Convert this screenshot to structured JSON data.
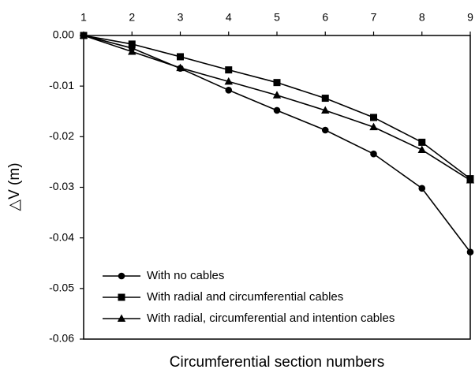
{
  "chart_data": {
    "type": "line",
    "xlabel": "Circumferential section numbers",
    "ylabel": "△V (m)",
    "x": [
      1,
      2,
      3,
      4,
      5,
      6,
      7,
      8,
      9
    ],
    "x_tick_labels": [
      "1",
      "2",
      "3",
      "4",
      "5",
      "6",
      "7",
      "8",
      "9"
    ],
    "xlim": [
      1,
      9
    ],
    "x_axis_position": "top",
    "ylim": [
      -0.06,
      0.0
    ],
    "y_ticks": [
      0.0,
      -0.01,
      -0.02,
      -0.03,
      -0.04,
      -0.05,
      -0.06
    ],
    "y_tick_labels": [
      "0.00",
      "-0.01",
      "-0.02",
      "-0.03",
      "-0.04",
      "-0.05",
      "-0.06"
    ],
    "grid": false,
    "legend_position": "bottom-left",
    "series": [
      {
        "name": "With no cables",
        "marker": "circle",
        "color": "#000000",
        "values": [
          0.0,
          -0.0025,
          -0.0065,
          -0.0108,
          -0.0148,
          -0.0187,
          -0.0234,
          -0.0302,
          -0.0428
        ]
      },
      {
        "name": "With radial and circumferential cables",
        "marker": "square",
        "color": "#000000",
        "values": [
          0.0,
          -0.0017,
          -0.0042,
          -0.0068,
          -0.0093,
          -0.0124,
          -0.0162,
          -0.0211,
          -0.0283
        ]
      },
      {
        "name": "With radial, circumferential and intention cables",
        "marker": "triangle",
        "color": "#000000",
        "values": [
          0.0,
          -0.0032,
          -0.0064,
          -0.0091,
          -0.0118,
          -0.0148,
          -0.0181,
          -0.0226,
          -0.0286
        ]
      }
    ]
  }
}
